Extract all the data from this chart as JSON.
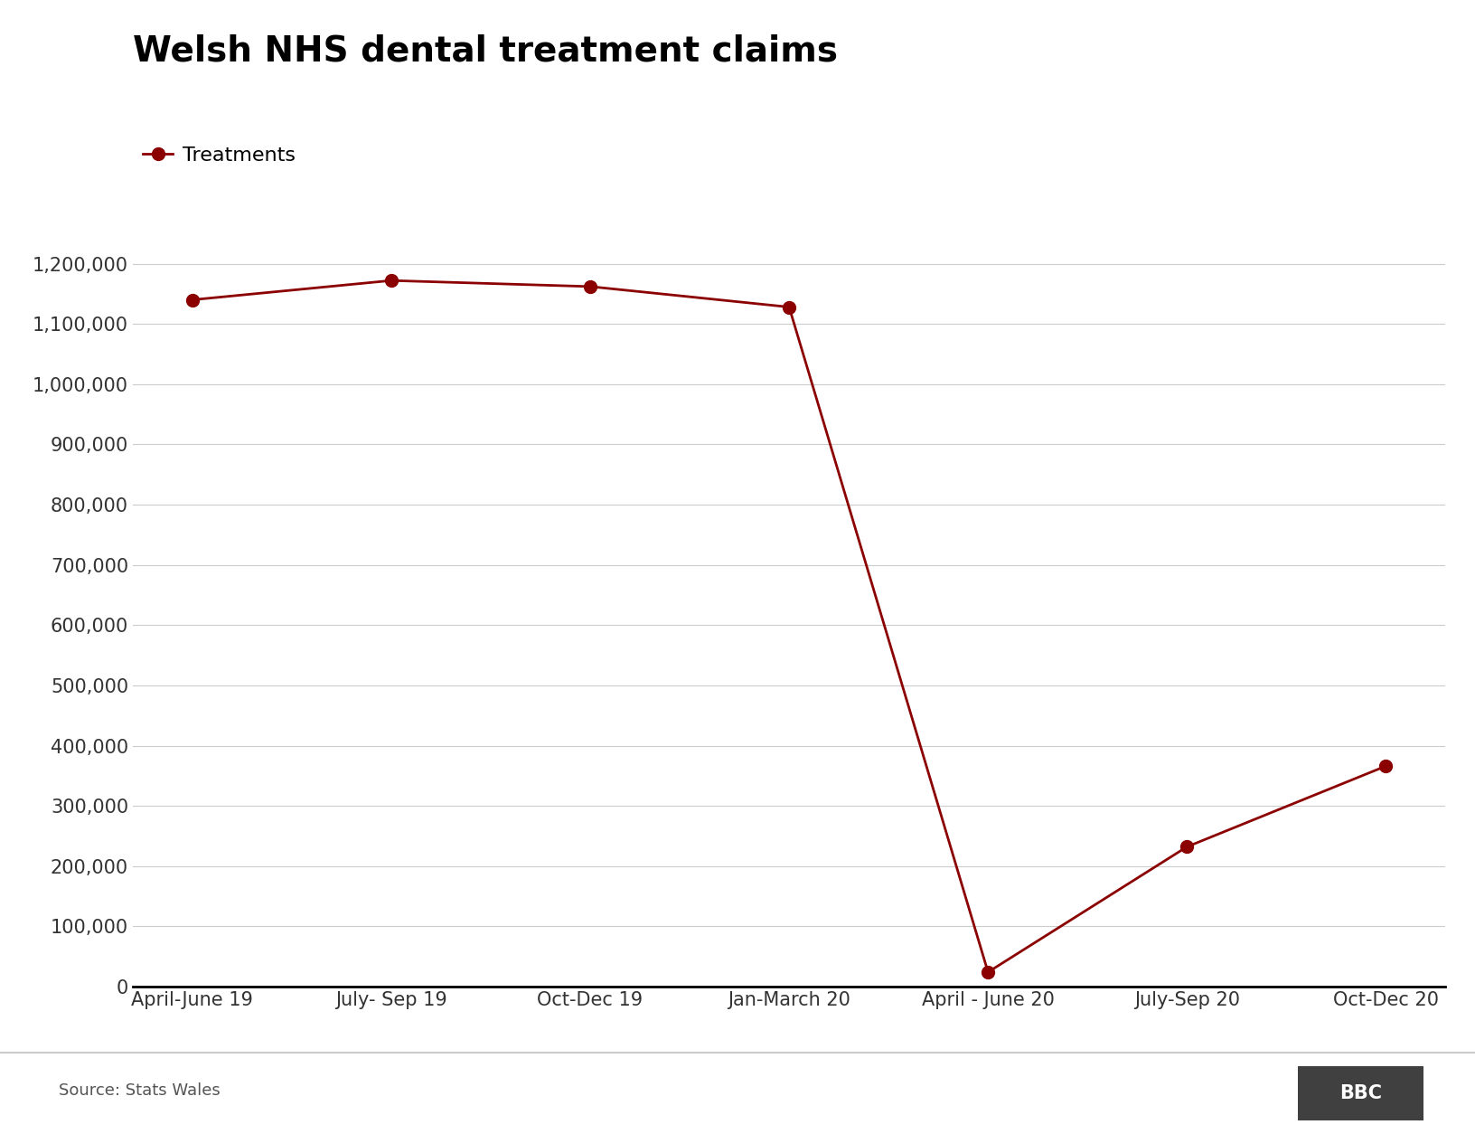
{
  "title": "Welsh NHS dental treatment claims",
  "categories": [
    "April-June 19",
    "July- Sep 19",
    "Oct-Dec 19",
    "Jan-March 20",
    "April - June 20",
    "July-Sep 20",
    "Oct-Dec 20"
  ],
  "values": [
    1140000,
    1172000,
    1162000,
    1128000,
    24000,
    232000,
    366000
  ],
  "line_color": "#8B0000",
  "marker_color": "#8B0000",
  "marker_size": 10,
  "line_width": 2.0,
  "yticks": [
    0,
    100000,
    200000,
    300000,
    400000,
    500000,
    600000,
    700000,
    800000,
    900000,
    1000000,
    1100000,
    1200000
  ],
  "ylim": [
    0,
    1280000
  ],
  "legend_label": "Treatments",
  "source_text": "Source: Stats Wales",
  "background_color": "#ffffff",
  "title_fontsize": 28,
  "tick_fontsize": 15,
  "source_fontsize": 13,
  "legend_fontsize": 16,
  "bbc_bg": "#404040"
}
